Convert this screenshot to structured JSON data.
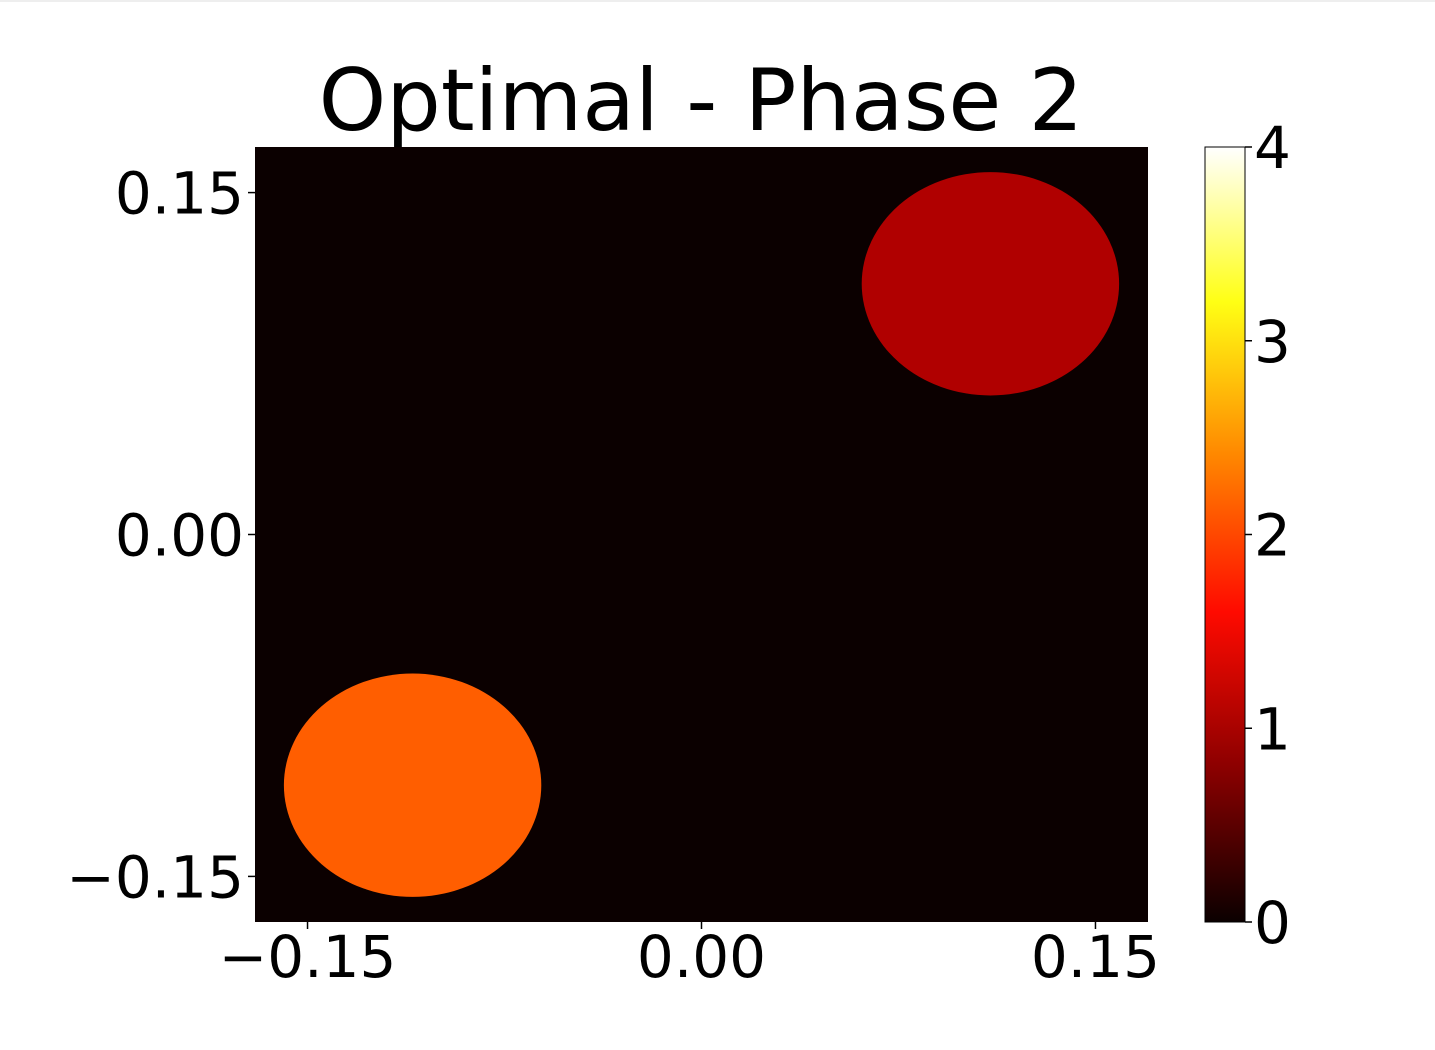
{
  "chart_data": {
    "type": "heatmap",
    "title": "Optimal - Phase 2",
    "xlabel": "",
    "ylabel": "",
    "xlim": [
      -0.17,
      0.17
    ],
    "ylim": [
      -0.17,
      0.17
    ],
    "x_ticks": [
      -0.15,
      0.0,
      0.15
    ],
    "y_ticks": [
      -0.15,
      0.0,
      0.15
    ],
    "x_tick_labels": [
      "−0.15",
      "0.00",
      "0.15"
    ],
    "y_tick_labels": [
      "−0.15",
      "0.00",
      "0.15"
    ],
    "background_value": 0,
    "colormap": "hot",
    "colorbar": {
      "min": 0,
      "max": 4,
      "ticks": [
        0,
        1,
        2,
        3,
        4
      ],
      "tick_labels": [
        "0",
        "1",
        "2",
        "3",
        "4"
      ],
      "stops": [
        "#0b0000",
        "#8c0000",
        "#ff0a00",
        "#ff8600",
        "#ffff14",
        "#ffffff"
      ]
    },
    "regions": [
      {
        "shape": "disk",
        "center": [
          0.11,
          0.11
        ],
        "radius": 0.049,
        "value": 1,
        "color": "#b00000"
      },
      {
        "shape": "disk",
        "center": [
          -0.11,
          -0.11
        ],
        "radius": 0.049,
        "value": 2.2,
        "color": "#ff5e00"
      }
    ],
    "grid": false
  },
  "colors": {
    "background": "#0b0000"
  }
}
